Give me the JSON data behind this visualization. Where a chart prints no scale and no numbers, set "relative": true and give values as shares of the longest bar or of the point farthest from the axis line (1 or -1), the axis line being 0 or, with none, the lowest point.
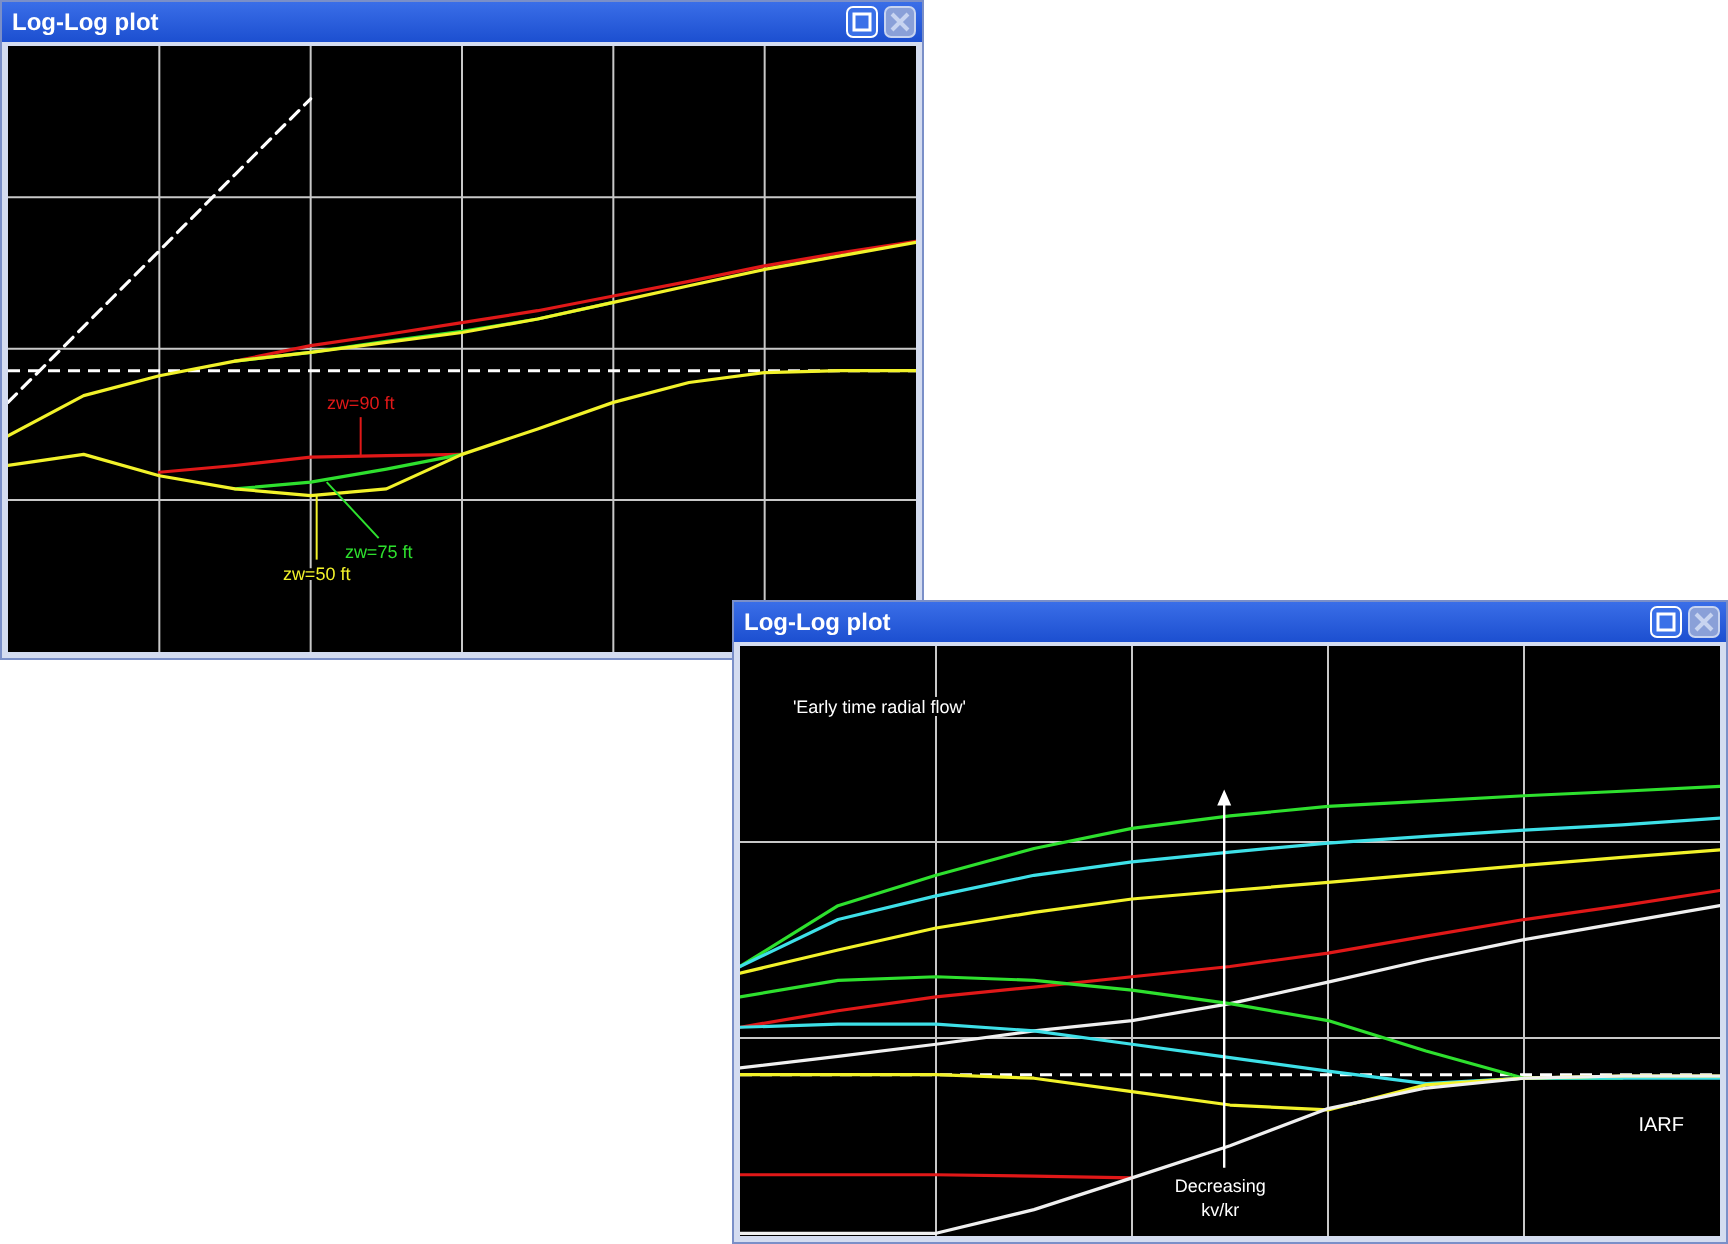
{
  "chart_data": [
    {
      "type": "line",
      "title": "Log-Log plot",
      "categories": [
        null,
        null,
        null,
        null,
        null,
        null,
        null,
        null,
        null,
        null,
        null,
        null,
        null
      ],
      "relative": true,
      "grid": true,
      "series": [
        {
          "color": "#e01818",
          "values": [
            null,
            null,
            null,
            0.339,
            0.378,
            0.406,
            0.436,
            0.466,
            0.503,
            0.54,
            0.579,
            0.612,
            0.641
          ]
        },
        {
          "color": "#2ee02e",
          "values": [
            null,
            null,
            null,
            0.339,
            0.361,
            0.389,
            0.414,
            0.445,
            0.487,
            null,
            null,
            null,
            null
          ]
        },
        {
          "color": "#f2f22a",
          "values": [
            0.151,
            0.252,
            0.302,
            0.339,
            0.361,
            0.386,
            0.411,
            0.445,
            0.487,
            0.529,
            0.57,
            0.604,
            0.638
          ]
        },
        {
          "name": "zw=90 ft",
          "color": "#e01818",
          "values": [
            null,
            null,
            0.059,
            0.076,
            0.097,
            0.101,
            0.104,
            null,
            null,
            null,
            null,
            null,
            null
          ]
        },
        {
          "name": "zw=75 ft",
          "color": "#2ee02e",
          "values": [
            null,
            null,
            null,
            0.017,
            0.034,
            0.067,
            0.104,
            null,
            null,
            null,
            null,
            null,
            null
          ]
        },
        {
          "name": "zw=50 ft",
          "color": "#f2f22a",
          "values": [
            0.076,
            0.104,
            0.05,
            0.017,
            0,
            0.017,
            0.104,
            0.168,
            0.235,
            0.285,
            0.31,
            0.315,
            0.315
          ]
        },
        {
          "color": "#ffffff",
          "line_style": "dashed",
          "values": [
            0.235,
            0.426,
            0.617,
            0.809,
            1,
            null,
            null,
            null,
            null,
            null,
            null,
            null,
            null
          ]
        }
      ],
      "ref_lines": [
        {
          "axis": "y",
          "value": 0.315,
          "color": "#ffffff",
          "line_style": "dashed"
        }
      ]
    },
    {
      "type": "line",
      "title": "Log-Log plot",
      "categories": [
        null,
        null,
        null,
        null,
        null,
        null,
        null,
        null,
        null,
        null,
        null
      ],
      "relative": true,
      "grid": true,
      "series": [
        {
          "color": "#2ee02e",
          "values": [
            0.597,
            0.733,
            0.801,
            0.861,
            0.906,
            0.934,
            0.955,
            0.967,
            0.979,
            0.989,
            1
          ]
        },
        {
          "color": "#3ee0e8",
          "values": [
            0.597,
            0.702,
            0.755,
            0.801,
            0.831,
            0.853,
            0.873,
            0.888,
            0.902,
            0.914,
            0.929
          ]
        },
        {
          "color": "#f2f22a",
          "values": [
            0.582,
            0.634,
            0.683,
            0.718,
            0.748,
            0.767,
            0.785,
            0.804,
            0.823,
            0.841,
            0.858
          ]
        },
        {
          "color": "#e01818",
          "values": [
            0.461,
            0.498,
            0.529,
            0.551,
            0.574,
            0.597,
            0.627,
            0.665,
            0.702,
            0.733,
            0.767
          ]
        },
        {
          "color": "#f0f0f0",
          "values": [
            0.37,
            0.396,
            0.423,
            0.453,
            0.476,
            0.514,
            0.562,
            0.612,
            0.657,
            0.695,
            0.733
          ]
        },
        {
          "color": "#2ee02e",
          "values": [
            0.529,
            0.566,
            0.574,
            0.566,
            0.544,
            0.514,
            0.476,
            0.408,
            0.347,
            0.347,
            null
          ]
        },
        {
          "color": "#3ee0e8",
          "values": [
            0.461,
            0.468,
            0.468,
            0.453,
            0.423,
            0.393,
            0.363,
            0.335,
            0.347,
            0.347,
            0.347
          ]
        },
        {
          "color": "#f2f22a",
          "values": [
            0.355,
            0.355,
            0.355,
            0.347,
            0.317,
            0.287,
            0.276,
            0.332,
            0.347,
            0.352,
            0.352
          ]
        },
        {
          "color": "#e01818",
          "values": [
            0.131,
            0.131,
            0.131,
            0.128,
            0.124,
            null,
            null,
            null,
            null,
            null,
            null
          ]
        },
        {
          "color": "#f0f0f0",
          "values": [
            0,
            0,
            0,
            0.053,
            0.124,
            0.196,
            0.279,
            0.325,
            0.347,
            0.352,
            0.352
          ]
        }
      ],
      "ref_lines": [
        {
          "axis": "y",
          "value": 0.355,
          "label": "IARF",
          "color": "#ffffff",
          "line_style": "dashed"
        }
      ],
      "annotations": [
        "'Early time radial flow'",
        "Decreasing kv/kr"
      ]
    }
  ]
}
